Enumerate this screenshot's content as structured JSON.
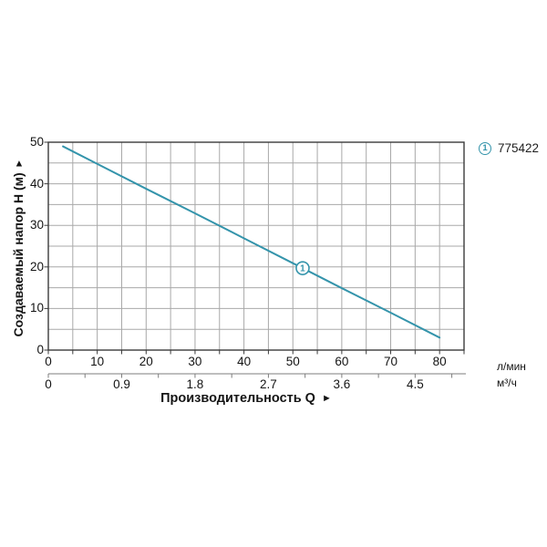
{
  "legend": {
    "marker": "1",
    "label": "775422"
  },
  "chart_data": {
    "type": "line",
    "title": "",
    "x_axis": {
      "title": "Производительность Q",
      "arrow": "►",
      "primary": {
        "unit": "л/мин",
        "range": [
          0,
          85
        ],
        "grid_step": 5,
        "tick_labels": [
          0,
          10,
          20,
          30,
          40,
          50,
          60,
          70,
          80
        ]
      },
      "secondary": {
        "unit": "м³/ч",
        "tick_labels": [
          "0",
          "0.9",
          "1.8",
          "2.7",
          "3.6",
          "4.5"
        ],
        "tick_step": 0.45,
        "lmin_per_m3h": 16.6667
      }
    },
    "y_axis": {
      "title": "Создаваемый напор H (м)",
      "arrow": "▲",
      "range": [
        0,
        50
      ],
      "grid_step": 5,
      "tick_labels": [
        0,
        10,
        20,
        30,
        40,
        50
      ]
    },
    "grid": true,
    "legend_position": "top-right",
    "series": [
      {
        "name": "775422",
        "marker": "1",
        "color": "#3494ab",
        "points_q_lmin_h_m": [
          [
            3,
            49
          ],
          [
            10,
            44.8
          ],
          [
            20,
            38.8
          ],
          [
            30,
            32.9
          ],
          [
            40,
            26.9
          ],
          [
            50,
            20.9
          ],
          [
            60,
            14.9
          ],
          [
            70,
            9.0
          ],
          [
            80,
            3
          ]
        ],
        "marker_at": [
          52,
          19.7
        ]
      }
    ],
    "colors": {
      "curve": "#3494ab",
      "grid": "#a8a8a8",
      "axis": "#3b3b3b",
      "ruler": "#7d7d7d",
      "text": "#141414"
    }
  }
}
